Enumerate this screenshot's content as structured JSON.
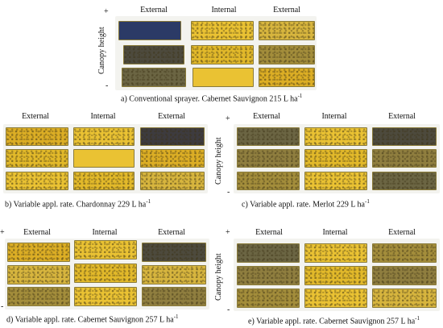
{
  "panels": {
    "a": {
      "headers": [
        "External",
        "Internal",
        "External"
      ],
      "caption_prefix": "a) Conventional sprayer. Cabernet Sauvignon 215 L ha",
      "caption_sup": "-1",
      "side_label": "Canopy height",
      "plus": "+",
      "minus": "-"
    },
    "b": {
      "headers": [
        "External",
        "Internal",
        "External"
      ],
      "caption_prefix": "b) Variable appl. rate. Chardonnay 229 L ha",
      "caption_sup": "-1"
    },
    "c": {
      "headers": [
        "External",
        "Internal",
        "External"
      ],
      "caption_prefix": "c) Variable appl. rate. Merlot 229 L ha",
      "caption_sup": "-1",
      "side_label": "Canopy height",
      "plus": "+",
      "minus": "-"
    },
    "d": {
      "headers": [
        "External",
        "Internal",
        "External"
      ],
      "caption_prefix": "d) Variable appl. rate. Cabernet Sauvignon 257 L ha",
      "caption_sup": "-1",
      "plus": "+",
      "minus": "-"
    },
    "e": {
      "headers": [
        "External",
        "Internal",
        "External"
      ],
      "caption_prefix": "e) Variable appl. rate. Cabernet Sauvignon 257 L ha",
      "caption_sup": "-1",
      "side_label": "Canopy height",
      "plus": "+",
      "minus": "-"
    }
  },
  "colors": {
    "paper_yellow": "#e2b92a",
    "stained_dark": "#3d3b3f",
    "background": "#ffffff"
  }
}
